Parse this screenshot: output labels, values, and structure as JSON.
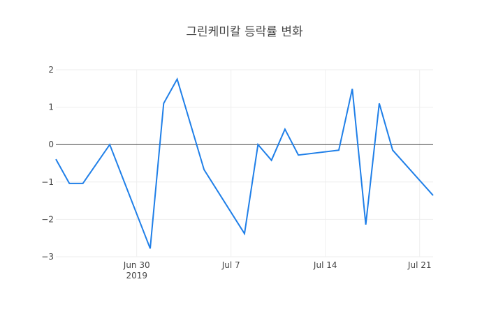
{
  "chart_data": {
    "type": "line",
    "title": "그린케미칼 등락률 변화",
    "xlabel": "",
    "ylabel": "",
    "ylim": [
      -3,
      2
    ],
    "yticks": [
      2,
      1,
      0,
      -1,
      -2,
      -3
    ],
    "ytick_labels": [
      "2",
      "1",
      "0",
      "−1",
      "−2",
      "−3"
    ],
    "xticks": [
      {
        "date": "2019-06-30",
        "label": "Jun 30",
        "sublabel": "2019"
      },
      {
        "date": "2019-07-07",
        "label": "Jul 7",
        "sublabel": ""
      },
      {
        "date": "2019-07-14",
        "label": "Jul 14",
        "sublabel": ""
      },
      {
        "date": "2019-07-21",
        "label": "Jul 21",
        "sublabel": ""
      }
    ],
    "xrange": [
      "2019-06-24",
      "2019-07-22"
    ],
    "grid": true,
    "zeroline": true,
    "legend": false,
    "line_color": "#1f7fe8",
    "series": [
      {
        "name": "등락률",
        "x": [
          "2019-06-24",
          "2019-06-25",
          "2019-06-26",
          "2019-06-28",
          "2019-07-01",
          "2019-07-02",
          "2019-07-03",
          "2019-07-05",
          "2019-07-08",
          "2019-07-09",
          "2019-07-10",
          "2019-07-11",
          "2019-07-12",
          "2019-07-15",
          "2019-07-16",
          "2019-07-17",
          "2019-07-18",
          "2019-07-19",
          "2019-07-22"
        ],
        "values": [
          -0.39,
          -1.04,
          -1.04,
          0.0,
          -2.78,
          1.1,
          1.75,
          -0.67,
          -2.38,
          0.0,
          -0.42,
          0.41,
          -0.28,
          -0.15,
          1.49,
          -2.14,
          1.1,
          -0.15,
          -1.36
        ]
      }
    ]
  }
}
